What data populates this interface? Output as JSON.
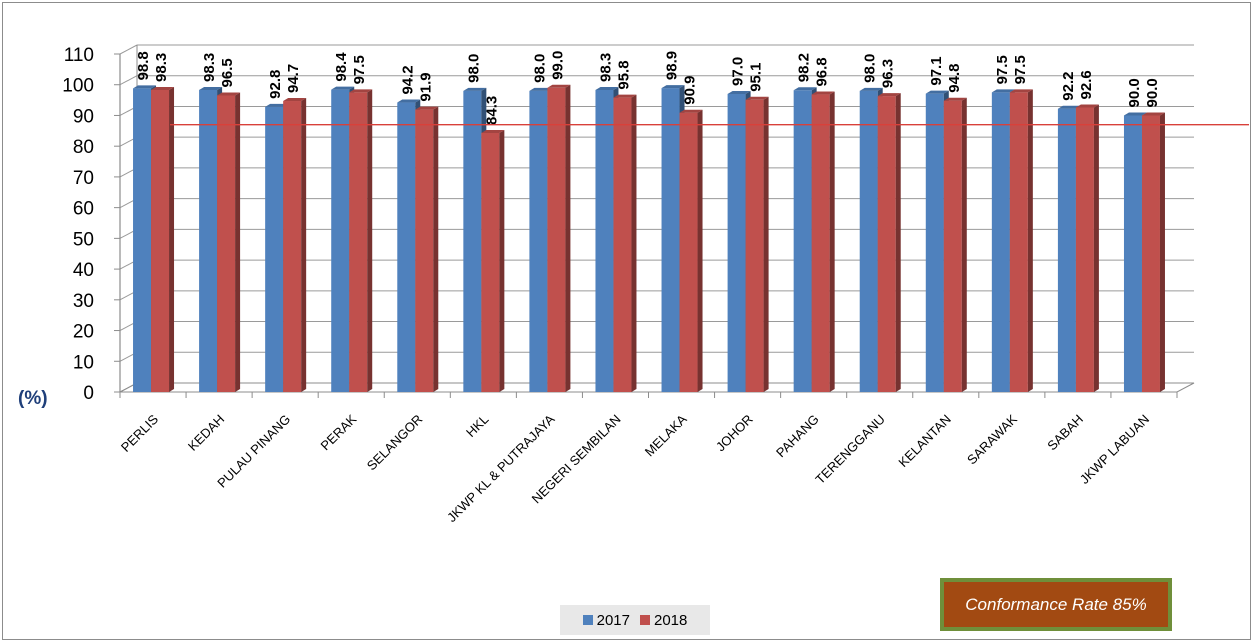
{
  "chart_data": {
    "type": "bar",
    "categories": [
      "PERLIS",
      "KEDAH",
      "PULAU PINANG",
      "PERAK",
      "SELANGOR",
      "HKL",
      "JKWP KL & PUTRAJAYA",
      "NEGERI SEMBILAN",
      "MELAKA",
      "JOHOR",
      "PAHANG",
      "TERENGGANU",
      "KELANTAN",
      "SARAWAK",
      "SABAH",
      "JKWP LABUAN"
    ],
    "series": [
      {
        "name": "2017",
        "color": "#4f81bd",
        "values": [
          98.8,
          98.3,
          92.8,
          98.4,
          94.2,
          98.0,
          98.0,
          98.3,
          98.9,
          97.0,
          98.2,
          98.0,
          97.1,
          97.5,
          92.2,
          90.0
        ]
      },
      {
        "name": "2018",
        "color": "#c0504d",
        "values": [
          98.3,
          96.5,
          94.7,
          97.5,
          91.9,
          84.3,
          99.0,
          95.8,
          90.9,
          95.1,
          96.8,
          96.3,
          94.8,
          97.5,
          92.6,
          90.0
        ]
      }
    ],
    "data_labels": {
      "2017": [
        "98.8",
        "98.3",
        "92.8",
        "98.4",
        "94.2",
        "98.0",
        "98.0",
        "98.3",
        "98.9",
        "97.0",
        "98.2",
        "98.0",
        "97.1",
        "97.5",
        "92.2",
        "90.0"
      ],
      "2018": [
        "98.3",
        "96.5",
        "94.7",
        "97.5",
        "91.9",
        "84.3",
        "99.0",
        "95.8",
        "90.9",
        "95.1",
        "96.8",
        "96.3",
        "94.8",
        "97.5",
        "92.6",
        "90.0"
      ]
    },
    "ylim": [
      0,
      110
    ],
    "yticks": [
      "0",
      "10",
      "20",
      "30",
      "40",
      "50",
      "60",
      "70",
      "80",
      "90",
      "100",
      "110"
    ],
    "ylabel": "(%)",
    "grid": true,
    "reference_line": {
      "value": 87,
      "color": "#d9403a"
    },
    "legend": {
      "placement": "bottom",
      "entries": [
        "2017",
        "2018"
      ]
    }
  },
  "annotation": {
    "text": "Conformance Rate 85%"
  }
}
